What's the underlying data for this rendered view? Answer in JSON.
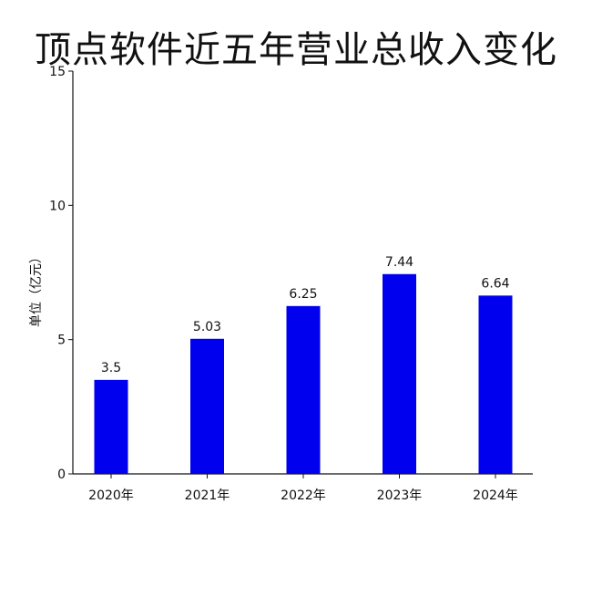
{
  "chart_data": {
    "type": "bar",
    "title": "顶点软件近五年营业总收入变化",
    "xlabel": "",
    "ylabel": "单位（亿元）",
    "categories": [
      "2020年",
      "2021年",
      "2022年",
      "2023年",
      "2024年"
    ],
    "values": [
      3.5,
      5.03,
      6.25,
      7.44,
      6.64
    ],
    "data_labels": [
      "3.5",
      "5.03",
      "6.25",
      "7.44",
      "6.64"
    ],
    "ylim": [
      0,
      15
    ],
    "yticks": [
      0,
      5,
      10,
      15
    ],
    "grid": false,
    "legend": "none",
    "bar_color": "#0000ee"
  }
}
